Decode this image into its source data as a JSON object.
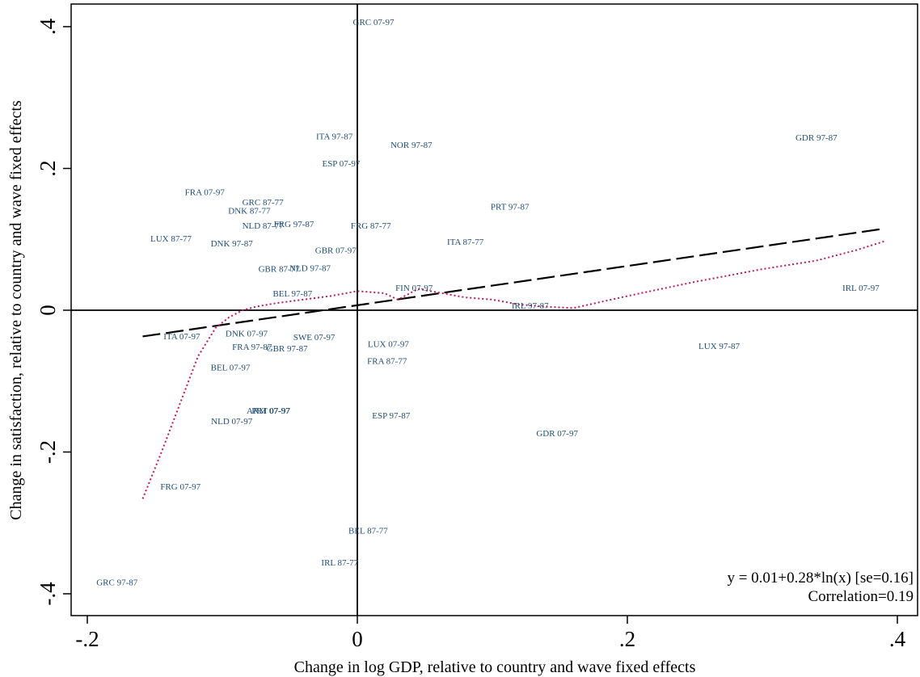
{
  "chart_data": {
    "type": "scatter",
    "xlabel": "Change in log GDP, relative to country and wave fixed effects",
    "ylabel": "Change in satisfaction, relative to country and wave fixed effects",
    "xlim": [
      -0.2,
      0.4
    ],
    "ylim": [
      -0.4,
      0.4
    ],
    "x_ticks": [
      -0.2,
      0,
      0.2,
      0.4
    ],
    "x_tick_labels": [
      "-.2",
      "0",
      ".2",
      ".4"
    ],
    "y_ticks": [
      -0.4,
      -0.2,
      0,
      0.2,
      0.4
    ],
    "y_tick_labels": [
      "-.4",
      "-.2",
      "0",
      ".2",
      ".4"
    ],
    "reference_lines": {
      "x": 0,
      "y": 0
    },
    "points": [
      {
        "label": "GRC 07-97",
        "x": 0.012,
        "y": 0.405
      },
      {
        "label": "ITA 97-87",
        "x": -0.017,
        "y": 0.244
      },
      {
        "label": "NOR 97-87",
        "x": 0.04,
        "y": 0.232
      },
      {
        "label": "GDR 97-87",
        "x": 0.34,
        "y": 0.242
      },
      {
        "label": "ESP 07-97",
        "x": -0.012,
        "y": 0.206
      },
      {
        "label": "FRA 07-97",
        "x": -0.113,
        "y": 0.165
      },
      {
        "label": "GRC 87-77",
        "x": -0.07,
        "y": 0.151
      },
      {
        "label": "DNK 87-77",
        "x": -0.08,
        "y": 0.139
      },
      {
        "label": "PRT 97-87",
        "x": 0.113,
        "y": 0.145
      },
      {
        "label": "NLD 87-77",
        "x": -0.07,
        "y": 0.118
      },
      {
        "label": "FRG 97-87",
        "x": -0.047,
        "y": 0.12
      },
      {
        "label": "FRG 87-77",
        "x": 0.01,
        "y": 0.118
      },
      {
        "label": "LUX 87-77",
        "x": -0.138,
        "y": 0.1
      },
      {
        "label": "DNK 97-87",
        "x": -0.093,
        "y": 0.093
      },
      {
        "label": "ITA 87-77",
        "x": 0.08,
        "y": 0.095
      },
      {
        "label": "GBR 07-97",
        "x": -0.016,
        "y": 0.083
      },
      {
        "label": "GBR 87-77",
        "x": -0.058,
        "y": 0.057
      },
      {
        "label": "NLD 97-87",
        "x": -0.035,
        "y": 0.058
      },
      {
        "label": "FIN 07-97",
        "x": 0.042,
        "y": 0.03
      },
      {
        "label": "BEL 97-87",
        "x": -0.048,
        "y": 0.022
      },
      {
        "label": "IRL 07-97",
        "x": 0.373,
        "y": 0.03
      },
      {
        "label": "IRL 97-87",
        "x": 0.128,
        "y": 0.005
      },
      {
        "label": "ITA 07-97",
        "x": -0.13,
        "y": -0.038
      },
      {
        "label": "DNK 07-97",
        "x": -0.082,
        "y": -0.034
      },
      {
        "label": "SWE 07-97",
        "x": -0.032,
        "y": -0.039
      },
      {
        "label": "LUX 07-97",
        "x": 0.023,
        "y": -0.049
      },
      {
        "label": "LUX 97-87",
        "x": 0.268,
        "y": -0.052
      },
      {
        "label": "FRA 97-87",
        "x": -0.078,
        "y": -0.053
      },
      {
        "label": "GBR 97-87",
        "x": -0.052,
        "y": -0.055
      },
      {
        "label": "FRA 87-77",
        "x": 0.022,
        "y": -0.073
      },
      {
        "label": "BEL 07-97",
        "x": -0.094,
        "y": -0.082
      },
      {
        "label": "ARM 07-97",
        "x": -0.066,
        "y": -0.143
      },
      {
        "label": "PRT 07-97",
        "x": -0.064,
        "y": -0.143
      },
      {
        "label": "ESP 97-87",
        "x": 0.025,
        "y": -0.15
      },
      {
        "label": "NLD 07-97",
        "x": -0.093,
        "y": -0.158
      },
      {
        "label": "GDR 07-97",
        "x": 0.148,
        "y": -0.175
      },
      {
        "label": "FRG 07-97",
        "x": -0.131,
        "y": -0.25
      },
      {
        "label": "BEL 87-77",
        "x": 0.008,
        "y": -0.312
      },
      {
        "label": "IRL 87-77",
        "x": -0.013,
        "y": -0.357
      },
      {
        "label": "GRC 97-87",
        "x": -0.178,
        "y": -0.385
      }
    ],
    "fit_line": {
      "style": "dashed",
      "color": "#000000",
      "from": [
        -0.159,
        -0.037
      ],
      "to": [
        0.39,
        0.115
      ]
    },
    "smoother": {
      "style": "dotted",
      "color": "#c2185b",
      "x": [
        -0.159,
        -0.145,
        -0.13,
        -0.118,
        -0.105,
        -0.095,
        -0.085,
        -0.075,
        -0.06,
        -0.04,
        -0.02,
        0.0,
        0.02,
        0.03,
        0.045,
        0.06,
        0.08,
        0.1,
        0.12,
        0.14,
        0.16,
        0.2,
        0.25,
        0.3,
        0.34,
        0.37,
        0.39
      ],
      "y": [
        -0.266,
        -0.2,
        -0.125,
        -0.065,
        -0.025,
        -0.01,
        0.0,
        0.005,
        0.01,
        0.015,
        0.02,
        0.027,
        0.024,
        0.015,
        0.03,
        0.025,
        0.018,
        0.015,
        0.008,
        0.005,
        0.003,
        0.02,
        0.04,
        0.058,
        0.07,
        0.085,
        0.097
      ]
    },
    "annotations": [
      "y = 0.01+0.28*ln(x) [se=0.16]",
      "Correlation=0.19"
    ],
    "grid": false,
    "legend": "none"
  }
}
